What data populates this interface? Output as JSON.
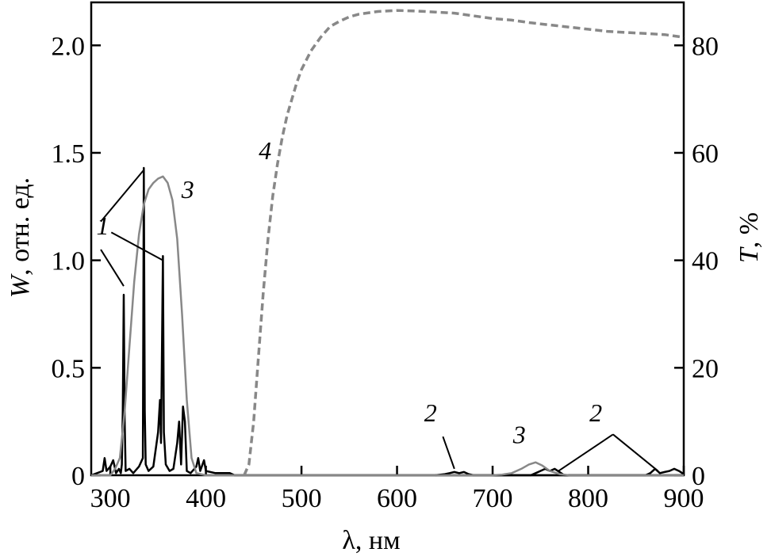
{
  "chart_data": {
    "type": "line",
    "xlabel": "λ, нм",
    "ylabel_left": {
      "symbol": "W",
      "rest": ", отн. ед."
    },
    "ylabel_right": {
      "symbol": "T",
      "rest": ", %"
    },
    "xlim": [
      280,
      900
    ],
    "ylim_left": [
      0,
      2.2
    ],
    "ylim_right": [
      0,
      88
    ],
    "x_ticks": [
      300,
      400,
      500,
      600,
      700,
      800,
      900
    ],
    "x_tick_labels": [
      "300",
      "400",
      "500",
      "600",
      "700",
      "800",
      "900"
    ],
    "y_left_ticks": [
      0,
      0.5,
      1.0,
      1.5,
      2.0
    ],
    "y_left_tick_labels": [
      "0",
      "0.5",
      "1.0",
      "1.5",
      "2.0"
    ],
    "y_right_ticks": [
      0,
      20,
      40,
      60,
      80
    ],
    "y_right_tick_labels": [
      "0",
      "20",
      "40",
      "60",
      "80"
    ],
    "series": [
      {
        "id": "1",
        "axis": "left",
        "color": "#000000",
        "style": "solid",
        "points": [
          [
            280,
            0
          ],
          [
            292,
            0.02
          ],
          [
            294,
            0.08
          ],
          [
            296,
            0.02
          ],
          [
            300,
            0.04
          ],
          [
            303,
            0.07
          ],
          [
            306,
            0.01
          ],
          [
            309,
            0.03
          ],
          [
            311,
            0.01
          ],
          [
            312,
            0.05
          ],
          [
            313,
            0.3
          ],
          [
            314,
            0.84
          ],
          [
            315,
            0.25
          ],
          [
            316,
            0.02
          ],
          [
            320,
            0.03
          ],
          [
            324,
            0.01
          ],
          [
            330,
            0.04
          ],
          [
            334,
            0.08
          ],
          [
            335,
            1.43
          ],
          [
            336,
            0.3
          ],
          [
            337,
            0.05
          ],
          [
            340,
            0.02
          ],
          [
            345,
            0.04
          ],
          [
            350,
            0.2
          ],
          [
            352,
            0.35
          ],
          [
            353,
            0.15
          ],
          [
            355,
            1.02
          ],
          [
            356,
            0.2
          ],
          [
            358,
            0.05
          ],
          [
            362,
            0.02
          ],
          [
            366,
            0.03
          ],
          [
            370,
            0.15
          ],
          [
            372,
            0.25
          ],
          [
            374,
            0.05
          ],
          [
            376,
            0.32
          ],
          [
            378,
            0.25
          ],
          [
            380,
            0.02
          ],
          [
            384,
            0.01
          ],
          [
            390,
            0.04
          ],
          [
            392,
            0.08
          ],
          [
            394,
            0.02
          ],
          [
            398,
            0.07
          ],
          [
            400,
            0.02
          ],
          [
            410,
            0.01
          ],
          [
            425,
            0.01
          ],
          [
            430,
            0
          ],
          [
            900,
            0
          ]
        ]
      },
      {
        "id": "2",
        "axis": "left",
        "color": "#000000",
        "style": "solid",
        "points": [
          [
            640,
            0
          ],
          [
            650,
            0.005
          ],
          [
            655,
            0.01
          ],
          [
            660,
            0.015
          ],
          [
            665,
            0.01
          ],
          [
            670,
            0.015
          ],
          [
            675,
            0.005
          ],
          [
            680,
            0
          ],
          [
            740,
            0
          ],
          [
            745,
            0.01
          ],
          [
            750,
            0.02
          ],
          [
            755,
            0.03
          ],
          [
            760,
            0.02
          ],
          [
            765,
            0.03
          ],
          [
            770,
            0.015
          ],
          [
            775,
            0
          ],
          [
            860,
            0
          ],
          [
            865,
            0.01
          ],
          [
            870,
            0.03
          ],
          [
            875,
            0.01
          ],
          [
            880,
            0.015
          ],
          [
            885,
            0.02
          ],
          [
            890,
            0.03
          ],
          [
            895,
            0.02
          ],
          [
            900,
            0.005
          ]
        ]
      },
      {
        "id": "3",
        "axis": "left",
        "color": "#888888",
        "style": "solid",
        "points": [
          [
            280,
            0
          ],
          [
            300,
            0
          ],
          [
            305,
            0.03
          ],
          [
            310,
            0.08
          ],
          [
            315,
            0.3
          ],
          [
            320,
            0.6
          ],
          [
            325,
            0.9
          ],
          [
            330,
            1.12
          ],
          [
            335,
            1.26
          ],
          [
            340,
            1.33
          ],
          [
            345,
            1.36
          ],
          [
            350,
            1.38
          ],
          [
            355,
            1.39
          ],
          [
            360,
            1.36
          ],
          [
            365,
            1.28
          ],
          [
            370,
            1.1
          ],
          [
            375,
            0.75
          ],
          [
            380,
            0.35
          ],
          [
            385,
            0.08
          ],
          [
            390,
            0.01
          ],
          [
            400,
            0
          ],
          [
            700,
            0
          ],
          [
            710,
            0.003
          ],
          [
            720,
            0.01
          ],
          [
            730,
            0.03
          ],
          [
            738,
            0.05
          ],
          [
            745,
            0.06
          ],
          [
            752,
            0.045
          ],
          [
            760,
            0.02
          ],
          [
            770,
            0.005
          ],
          [
            780,
            0
          ],
          [
            900,
            0
          ]
        ]
      },
      {
        "id": "4",
        "axis": "right",
        "color": "#888888",
        "style": "dashed",
        "points": [
          [
            440,
            0
          ],
          [
            445,
            2
          ],
          [
            450,
            10
          ],
          [
            455,
            22
          ],
          [
            460,
            34
          ],
          [
            465,
            44
          ],
          [
            470,
            52
          ],
          [
            475,
            58
          ],
          [
            480,
            63
          ],
          [
            485,
            67
          ],
          [
            490,
            70
          ],
          [
            495,
            73
          ],
          [
            500,
            75.5
          ],
          [
            510,
            79
          ],
          [
            520,
            81.5
          ],
          [
            530,
            83.5
          ],
          [
            540,
            84.5
          ],
          [
            550,
            85.3
          ],
          [
            560,
            85.8
          ],
          [
            580,
            86.3
          ],
          [
            600,
            86.5
          ],
          [
            620,
            86.4
          ],
          [
            640,
            86.2
          ],
          [
            660,
            86
          ],
          [
            680,
            85.5
          ],
          [
            700,
            85
          ],
          [
            720,
            84.7
          ],
          [
            740,
            84.2
          ],
          [
            760,
            83.8
          ],
          [
            780,
            83.4
          ],
          [
            800,
            83
          ],
          [
            820,
            82.6
          ],
          [
            840,
            82.4
          ],
          [
            860,
            82.2
          ],
          [
            880,
            82
          ],
          [
            900,
            81.5
          ]
        ]
      }
    ],
    "annotations": [
      {
        "text": "1",
        "x": 292,
        "y": 1.12
      },
      {
        "text": "3",
        "x": 381,
        "y": 1.29
      },
      {
        "text": "4",
        "x": 462,
        "y": 1.47
      },
      {
        "text": "2",
        "x": 635,
        "y": 0.25
      },
      {
        "text": "3",
        "x": 728,
        "y": 0.15
      },
      {
        "text": "2",
        "x": 808,
        "y": 0.25
      }
    ],
    "leaders": [
      {
        "from": [
          290,
          1.18
        ],
        "to": [
          335,
          1.42
        ]
      },
      {
        "from": [
          301,
          1.13
        ],
        "to": [
          355,
          1.0
        ]
      },
      {
        "from": [
          290,
          1.05
        ],
        "to": [
          314,
          0.88
        ]
      },
      {
        "from": [
          648,
          0.18
        ],
        "to": [
          660,
          0.03
        ]
      },
      {
        "from": [
          826,
          0.19
        ],
        "to": [
          769,
          0.02
        ]
      },
      {
        "from": [
          826,
          0.19
        ],
        "to": [
          873,
          0.02
        ]
      }
    ]
  }
}
